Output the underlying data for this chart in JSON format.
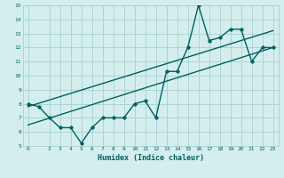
{
  "xlabel": "Humidex (Indice chaleur)",
  "ylabel": "",
  "bg_color": "#d4eeee",
  "grid_color": "#a8d0d0",
  "line_color": "#006060",
  "xlim": [
    -0.5,
    23.5
  ],
  "ylim": [
    5,
    15
  ],
  "xticks": [
    0,
    2,
    3,
    4,
    5,
    6,
    7,
    8,
    9,
    10,
    11,
    12,
    13,
    14,
    15,
    16,
    17,
    18,
    19,
    20,
    21,
    22,
    23
  ],
  "yticks": [
    5,
    6,
    7,
    8,
    9,
    10,
    11,
    12,
    13,
    14,
    15
  ],
  "main_x": [
    0,
    1,
    2,
    3,
    4,
    5,
    6,
    7,
    8,
    9,
    10,
    11,
    12,
    13,
    14,
    15,
    16,
    17,
    18,
    19,
    20,
    21,
    22,
    23
  ],
  "main_y": [
    8,
    7.8,
    7,
    6.3,
    6.3,
    5.2,
    6.3,
    7,
    7,
    7,
    8,
    8.2,
    7,
    10.3,
    10.3,
    12,
    15,
    12.5,
    12.7,
    13.3,
    13.3,
    11,
    12,
    12
  ],
  "trend1_x": [
    0,
    23
  ],
  "trend1_y": [
    6.5,
    12.0
  ],
  "trend2_x": [
    0,
    23
  ],
  "trend2_y": [
    7.8,
    13.2
  ],
  "marker_size": 2.5,
  "line_width": 1.0
}
